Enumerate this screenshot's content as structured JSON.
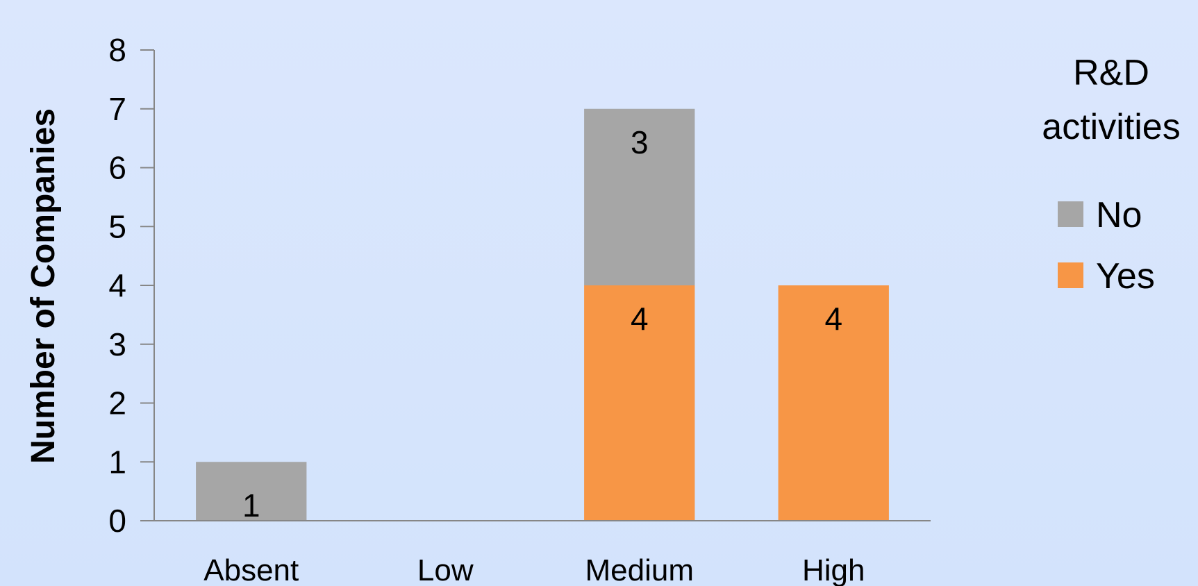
{
  "chart_data": {
    "type": "bar",
    "stacked": true,
    "categories": [
      "Absent",
      "Low",
      "Medium",
      "High"
    ],
    "series": [
      {
        "name": "Yes",
        "values": [
          0,
          0,
          4,
          4
        ],
        "color": "#f79646"
      },
      {
        "name": "No",
        "values": [
          1,
          0,
          3,
          0
        ],
        "color": "#a6a6a6"
      }
    ],
    "legend_order": [
      "No",
      "Yes"
    ],
    "data_labels_shown": true,
    "ylabel": "Number of Companies",
    "xlabel": "",
    "ylim": [
      0,
      8
    ],
    "yticks": [
      0,
      1,
      2,
      3,
      4,
      5,
      6,
      7,
      8
    ],
    "legend_title": "R&D activities",
    "legend_title_lines": [
      "R&D",
      "activities"
    ],
    "legend_position": "right",
    "grid": false,
    "axis_color": "#868686"
  }
}
